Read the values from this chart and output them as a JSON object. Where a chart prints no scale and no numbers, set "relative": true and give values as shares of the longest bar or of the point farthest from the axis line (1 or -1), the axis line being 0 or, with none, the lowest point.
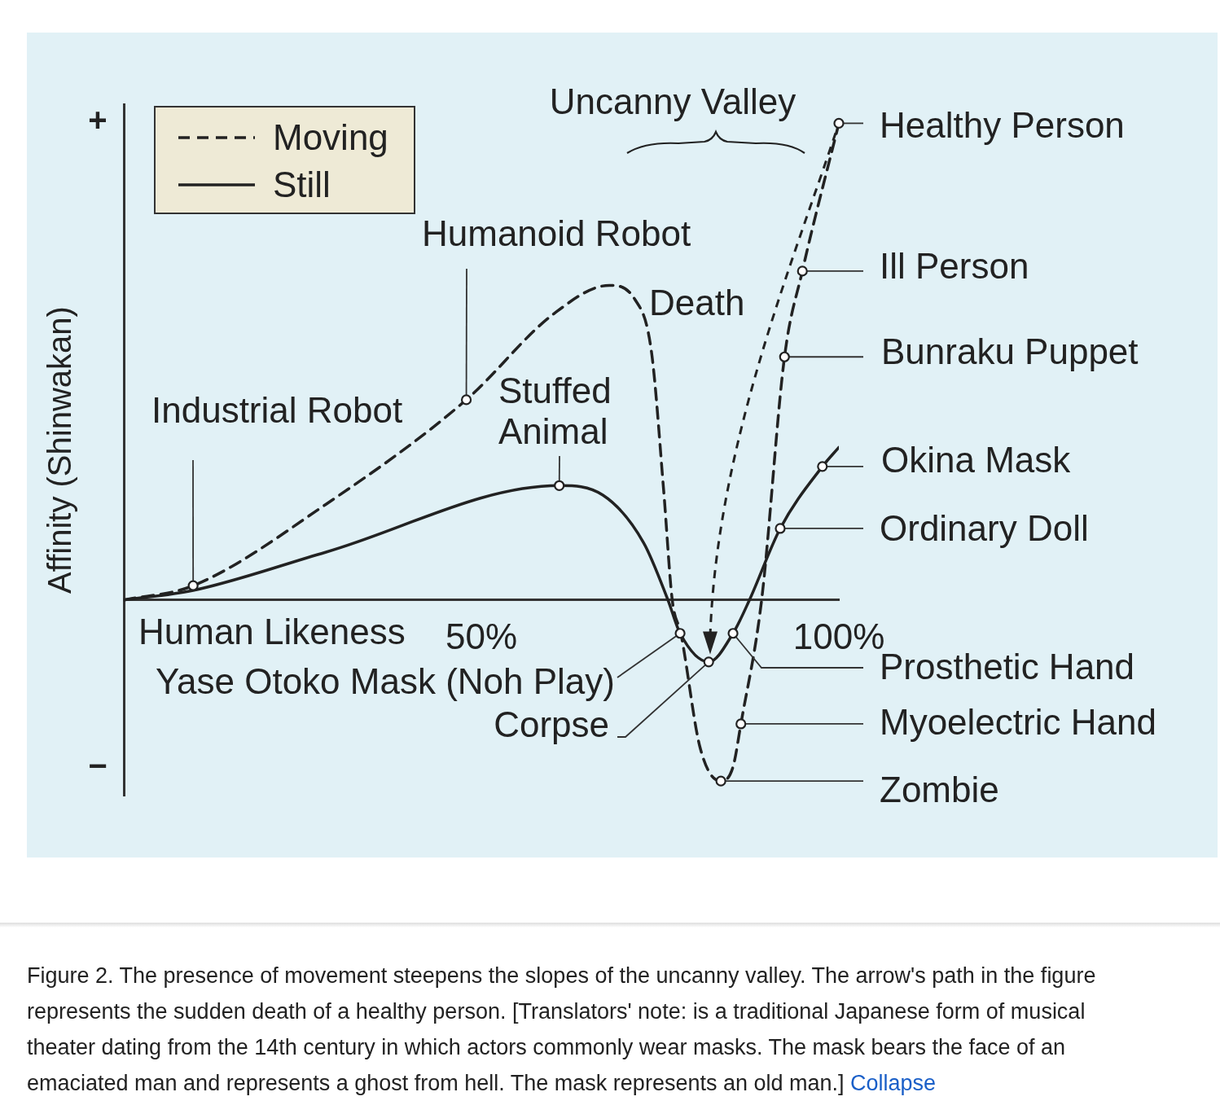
{
  "chart_data": {
    "type": "line",
    "relative": true,
    "xlabel": "Human Likeness",
    "ylabel": "Affinity (Shinwakan)",
    "xlim": [
      0,
      100
    ],
    "xticks": [
      {
        "value": 50,
        "label": "50%"
      },
      {
        "value": 100,
        "label": "100%"
      }
    ],
    "grid": false,
    "legend": "top left",
    "series": [
      {
        "name": "Moving",
        "color": "#222222",
        "line_style": "dashed",
        "x": [
          0,
          9.7,
          28.2,
          47.9,
          60.1,
          67.9,
          71.5,
          73.8,
          75.5,
          76.7,
          77.9,
          80.6,
          83.5,
          85.2,
          86.3,
          89.2,
          92.4,
          94.9,
          100
        ],
        "values": [
          0,
          0.03,
          0.2,
          0.42,
          0.6,
          0.66,
          0.63,
          0.52,
          0.23,
          0,
          -0.07,
          -0.31,
          -0.38,
          -0.35,
          -0.26,
          0,
          0.51,
          0.69,
          1
        ]
      },
      {
        "name": "Still",
        "color": "#222222",
        "line_style": "solid",
        "x": [
          0,
          9.7,
          28.2,
          60.9,
          67,
          72.7,
          76.1,
          77.8,
          81.8,
          85.2,
          87.5,
          91.8,
          97.7,
          100
        ],
        "values": [
          0,
          0.02,
          0.1,
          0.24,
          0.22,
          0.12,
          0,
          -0.07,
          -0.13,
          -0.07,
          0,
          0.15,
          0.28,
          0.32
        ]
      }
    ],
    "annotations": [
      {
        "text": "Industrial Robot",
        "x": 9.7,
        "y": 0.03
      },
      {
        "text": "Humanoid Robot",
        "x": 47.9,
        "y": 0.42
      },
      {
        "text": "Stuffed Animal",
        "x": 60.9,
        "y": 0.24
      },
      {
        "text": "Yase Otoko Mask (Noh Play)",
        "x": 77.8,
        "y": -0.07
      },
      {
        "text": "Corpse",
        "x": 81.8,
        "y": -0.13
      },
      {
        "text": "Prosthetic Hand",
        "x": 85.2,
        "y": -0.07
      },
      {
        "text": "Myoelectric Hand",
        "x": 86.3,
        "y": -0.26
      },
      {
        "text": "Zombie",
        "x": 83.5,
        "y": -0.38
      },
      {
        "text": "Ordinary Doll",
        "x": 91.8,
        "y": 0.15
      },
      {
        "text": "Okina Mask",
        "x": 97.7,
        "y": 0.28
      },
      {
        "text": "Bunraku Puppet",
        "x": 92.4,
        "y": 0.51
      },
      {
        "text": "Ill Person",
        "x": 94.9,
        "y": 0.69
      },
      {
        "text": "Healthy Person",
        "x": 100,
        "y": 1
      },
      "Uncanny Valley",
      "Death",
      "+",
      "−",
      "Figure 2. The presence of movement steepens the slopes of the uncanny valley. The arrow's path in the figure represents the sudden death of a healthy person. [Translators' note: is a traditional Japanese form of musical theater dating from the 14th century in which actors commonly wear masks. The mask bears the face of an emaciated man and represents a ghost from hell. The mask represents an old man.]",
      "Collapse"
    ]
  }
}
